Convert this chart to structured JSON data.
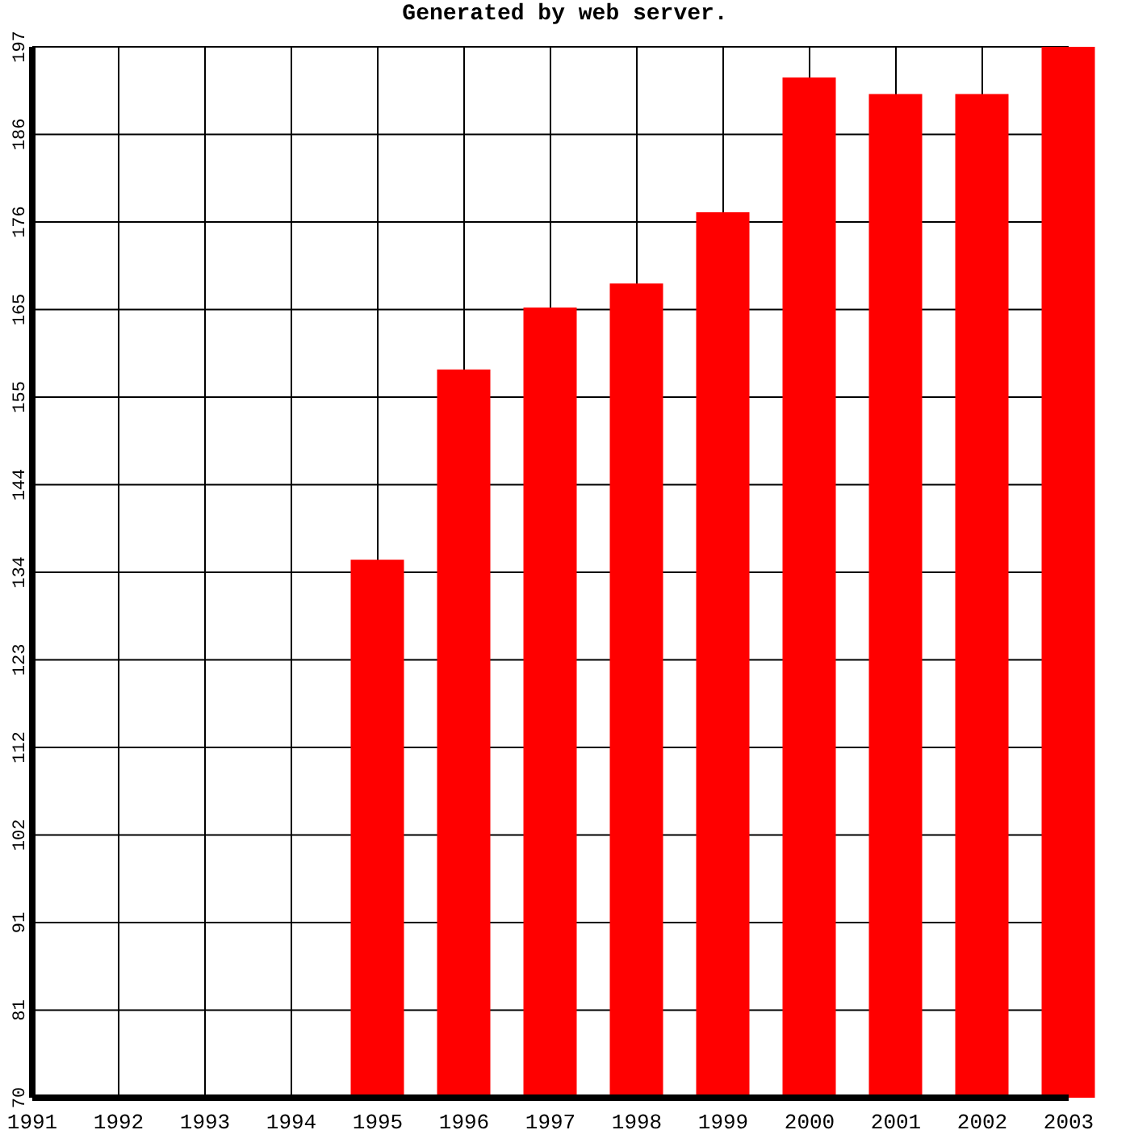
{
  "chart_data": {
    "type": "bar",
    "title": "Generated by web server.",
    "categories": [
      "1991",
      "1992",
      "1993",
      "1994",
      "1995",
      "1996",
      "1997",
      "1998",
      "1999",
      "2000",
      "2001",
      "2002",
      "2003"
    ],
    "values": [
      null,
      null,
      null,
      null,
      135,
      158,
      165.5,
      168.4,
      177,
      193.3,
      191.3,
      191.3,
      197
    ],
    "color": "#ff0000",
    "ylim": [
      70,
      197
    ],
    "yticks": [
      70,
      {
        "value": 80.58,
        "label": "81"
      },
      {
        "value": 91.17,
        "label": "91"
      },
      {
        "value": 101.75,
        "label": "102"
      },
      {
        "value": 112.33,
        "label": "112"
      },
      {
        "value": 122.92,
        "label": "123"
      },
      {
        "value": 133.5,
        "label": "134"
      },
      {
        "value": 144.08,
        "label": "144"
      },
      {
        "value": 154.67,
        "label": "155"
      },
      {
        "value": 165.25,
        "label": "165"
      },
      {
        "value": 175.83,
        "label": "176"
      },
      {
        "value": 186.42,
        "label": "186"
      },
      197
    ],
    "grid": true
  }
}
